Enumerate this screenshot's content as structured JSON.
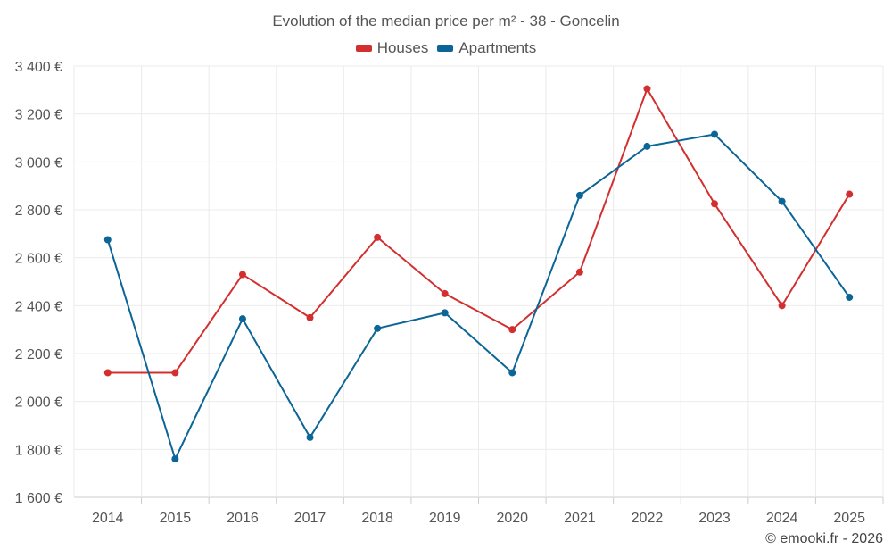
{
  "chart_data": {
    "type": "line",
    "title": "Evolution of the median price per m² - 38 - Goncelin",
    "categories": [
      "2014",
      "2015",
      "2016",
      "2017",
      "2018",
      "2019",
      "2020",
      "2021",
      "2022",
      "2023",
      "2024",
      "2025"
    ],
    "series": [
      {
        "name": "Houses",
        "color": "#d32f2f",
        "values": [
          2120,
          2120,
          2530,
          2350,
          2685,
          2450,
          2300,
          2540,
          3305,
          2825,
          2400,
          2865
        ]
      },
      {
        "name": "Apartments",
        "color": "#0b6596",
        "values": [
          2675,
          1760,
          2345,
          1850,
          2305,
          2370,
          2120,
          2860,
          3065,
          3115,
          2835,
          2435
        ]
      }
    ],
    "ylim": [
      1600,
      3400
    ],
    "yticks": [
      1600,
      1800,
      2000,
      2200,
      2400,
      2600,
      2800,
      3000,
      3200,
      3400
    ],
    "ytick_labels": [
      "1 600 €",
      "1 800 €",
      "2 000 €",
      "2 200 €",
      "2 400 €",
      "2 600 €",
      "2 800 €",
      "3 000 €",
      "3 200 €",
      "3 400 €"
    ],
    "xlabel": "",
    "ylabel": "",
    "grid": true,
    "legend_position": "top-center"
  },
  "footer": {
    "credit": "© emooki.fr - 2026"
  }
}
